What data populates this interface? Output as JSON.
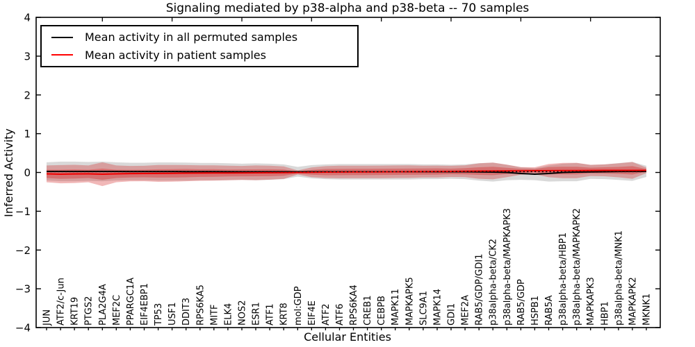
{
  "title": "Signaling mediated by p38-alpha and p38-beta -- 70 samples",
  "legend": {
    "items": [
      {
        "label": "Mean activity in all permuted samples",
        "color": "#000000"
      },
      {
        "label": "Mean activity in patient samples",
        "color": "#ff0000"
      }
    ]
  },
  "chart_data": {
    "type": "line",
    "title": "Signaling mediated by p38-alpha and p38-beta -- 70 samples",
    "xlabel": "Cellular Entities",
    "ylabel": "Inferred Activity",
    "ylim": [
      -4,
      4
    ],
    "yticks": [
      4,
      3,
      2,
      1,
      0,
      -1,
      -2,
      -3,
      -4
    ],
    "grid": false,
    "legend_position": "upper left",
    "categories": [
      "JUN",
      "ATF2/c-Jun",
      "KRT19",
      "PTGS2",
      "PLA2G4A",
      "MEF2C",
      "PPARGC1A",
      "EIF4EBP1",
      "TP53",
      "USF1",
      "DDIT3",
      "RPS6KA5",
      "MITF",
      "ELK4",
      "NOS2",
      "ESR1",
      "ATF1",
      "KRT8",
      "mol:GDP",
      "EIF4E",
      "ATF2",
      "ATF6",
      "RPS6KA4",
      "CREB1",
      "CEBPB",
      "MAPK11",
      "MAPKAPK5",
      "SLC9A1",
      "MAPK14",
      "GDI1",
      "MEF2A",
      "RAB5/GDP/GDI1",
      "p38alpha-beta/CK2",
      "p38alpha-beta/MAPKAPK3",
      "RAB5/GDP",
      "HSPB1",
      "RAB5A",
      "p38alpha-beta/HBP1",
      "p38alpha-beta/MAPKAPK2",
      "MAPKAPK3",
      "HBP1",
      "p38alpha-beta/MNK1",
      "MAPKAPK2",
      "MKNK1"
    ],
    "series": [
      {
        "name": "mean-activity-all-permuted-samples",
        "color": "#000000",
        "line_style": "solid",
        "width": 2,
        "values": [
          0.027,
          0.027,
          0.027,
          0.027,
          0.027,
          0.027,
          0.025,
          0.025,
          0.025,
          0.025,
          0.022,
          0.022,
          0.022,
          0.02,
          0.018,
          0.018,
          0.018,
          0.018,
          0.018,
          0.018,
          0.018,
          0.018,
          0.018,
          0.018,
          0.018,
          0.018,
          0.018,
          0.018,
          0.018,
          0.018,
          0.018,
          0.015,
          0.009,
          0.0,
          -0.027,
          -0.045,
          -0.027,
          0.0,
          0.009,
          0.015,
          0.018,
          0.025,
          0.027,
          0.027
        ]
      },
      {
        "name": "mean-activity-patient-samples",
        "color": "#ee0000",
        "line_style": "solid",
        "width": 2,
        "values": [
          -0.036,
          -0.045,
          -0.038,
          -0.036,
          -0.045,
          -0.036,
          -0.029,
          -0.027,
          -0.025,
          -0.022,
          -0.018,
          -0.016,
          -0.014,
          -0.013,
          -0.011,
          -0.009,
          -0.007,
          -0.004,
          0.0,
          0.005,
          0.009,
          0.011,
          0.013,
          0.014,
          0.016,
          0.018,
          0.02,
          0.022,
          0.025,
          0.027,
          0.031,
          0.036,
          0.038,
          0.04,
          0.041,
          0.045,
          0.047,
          0.049,
          0.05,
          0.052,
          0.054,
          0.054,
          0.054,
          0.054
        ]
      },
      {
        "name": "permuted-median-dotted",
        "color": "#111111",
        "line_style": "dotted",
        "width": 1.6,
        "values": 0.022
      }
    ],
    "bands": [
      {
        "name": "permuted-samples-range",
        "fill": "rgba(130,130,130,0.30)",
        "center_series": 0,
        "half_widths": [
          0.234,
          0.252,
          0.252,
          0.243,
          0.252,
          0.234,
          0.225,
          0.225,
          0.234,
          0.234,
          0.234,
          0.225,
          0.225,
          0.216,
          0.207,
          0.216,
          0.207,
          0.189,
          0.126,
          0.171,
          0.189,
          0.198,
          0.198,
          0.198,
          0.198,
          0.198,
          0.198,
          0.189,
          0.189,
          0.18,
          0.189,
          0.225,
          0.243,
          0.198,
          0.162,
          0.153,
          0.207,
          0.225,
          0.234,
          0.18,
          0.189,
          0.216,
          0.243,
          0.144
        ]
      },
      {
        "name": "patient-samples-range-outer",
        "fill": "rgba(214,39,40,0.33)",
        "center_series": 1,
        "half_widths": [
          0.216,
          0.234,
          0.234,
          0.216,
          0.306,
          0.216,
          0.198,
          0.198,
          0.216,
          0.216,
          0.207,
          0.198,
          0.198,
          0.189,
          0.18,
          0.189,
          0.18,
          0.162,
          0.054,
          0.126,
          0.153,
          0.162,
          0.162,
          0.162,
          0.162,
          0.162,
          0.162,
          0.153,
          0.153,
          0.144,
          0.153,
          0.198,
          0.216,
          0.162,
          0.099,
          0.09,
          0.171,
          0.198,
          0.198,
          0.144,
          0.153,
          0.18,
          0.216,
          0.072
        ]
      },
      {
        "name": "patient-samples-range-inner",
        "fill": "rgba(214,39,40,0.38)",
        "center_series": 1,
        "half_widths": [
          0.108,
          0.117,
          0.117,
          0.108,
          0.144,
          0.108,
          0.099,
          0.099,
          0.108,
          0.108,
          0.108,
          0.099,
          0.099,
          0.09,
          0.09,
          0.09,
          0.09,
          0.081,
          0.027,
          0.063,
          0.081,
          0.081,
          0.081,
          0.081,
          0.081,
          0.081,
          0.081,
          0.081,
          0.081,
          0.072,
          0.081,
          0.099,
          0.108,
          0.081,
          0.054,
          0.045,
          0.09,
          0.099,
          0.099,
          0.072,
          0.081,
          0.09,
          0.108,
          0.036
        ]
      }
    ]
  }
}
